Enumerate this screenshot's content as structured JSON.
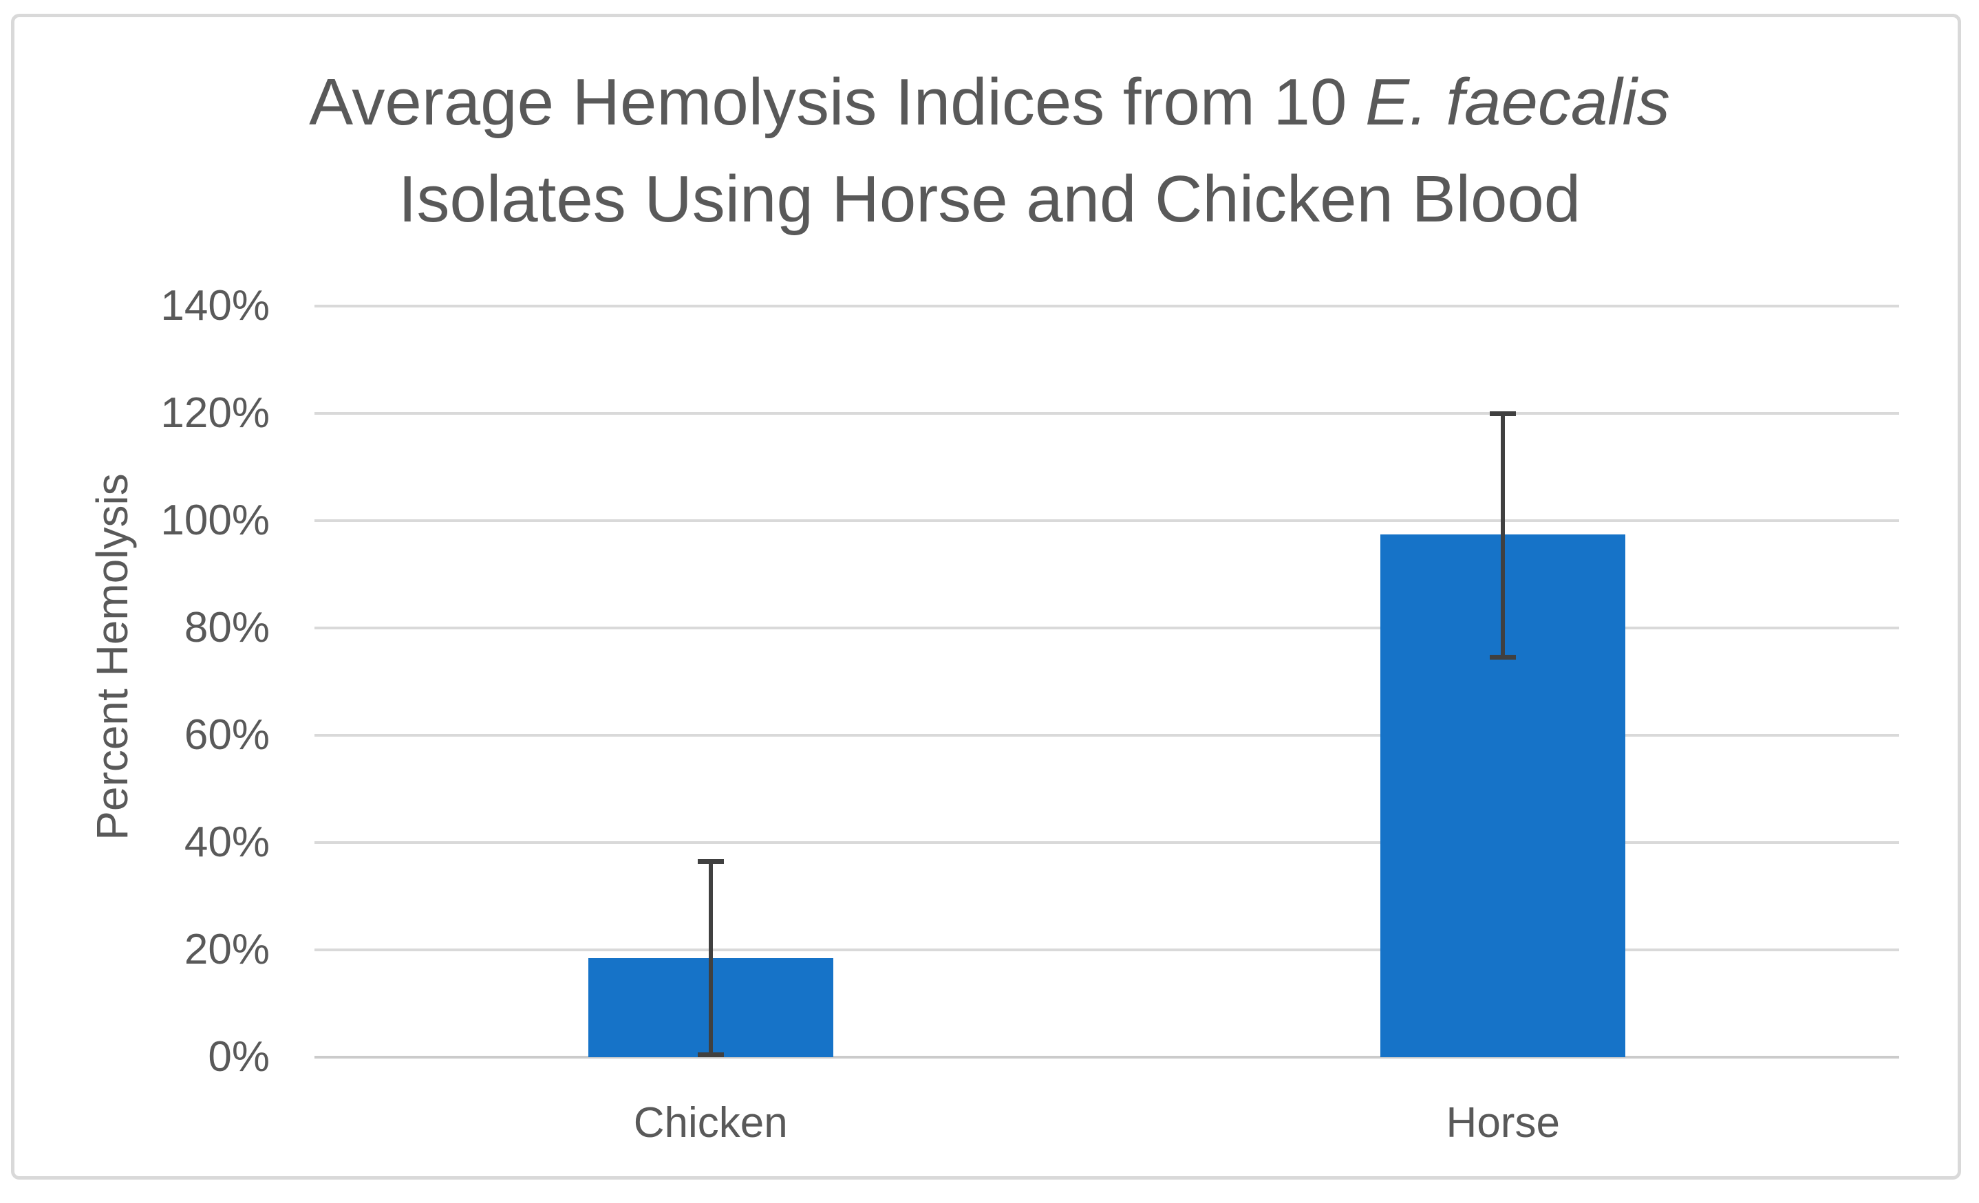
{
  "title": {
    "line1_prefix": "Average Hemolysis Indices from 10 ",
    "line1_italic": "E. faecalis",
    "line2": "Isolates Using Horse and Chicken Blood"
  },
  "y_axis": {
    "label": "Percent Hemolysis",
    "ticks": [
      "0%",
      "20%",
      "40%",
      "60%",
      "80%",
      "100%",
      "120%",
      "140%"
    ]
  },
  "x_axis": {
    "categories": [
      "Chicken",
      "Horse"
    ]
  },
  "chart_data": {
    "type": "bar",
    "title": "Average Hemolysis Indices from 10 E. faecalis Isolates Using Horse and Chicken Blood",
    "title_italic_segment": "E. faecalis",
    "categories": [
      "Chicken",
      "Horse"
    ],
    "values": [
      18.5,
      97.5
    ],
    "error_bars": [
      {
        "low": 0.5,
        "high": 36.5
      },
      {
        "low": 74.5,
        "high": 120
      }
    ],
    "xlabel": "",
    "ylabel": "Percent Hemolysis",
    "ylim": [
      0,
      140
    ],
    "ytick_values": [
      0,
      20,
      40,
      60,
      80,
      100,
      120,
      140
    ],
    "ytick_labels": [
      "0%",
      "20%",
      "40%",
      "60%",
      "80%",
      "100%",
      "120%",
      "140%"
    ],
    "grid": true,
    "legend": "none",
    "bar_color": "#1673C8",
    "error_bar_color": "#404040"
  },
  "colors": {
    "bar-fill": "#1673C8",
    "error-bar": "#404040",
    "gridline": "#D9D9D9",
    "axis-line": "#CBCBCB",
    "text": "#595959",
    "frame-border": "#D9D9D9",
    "bg": "#FFFFFF"
  }
}
